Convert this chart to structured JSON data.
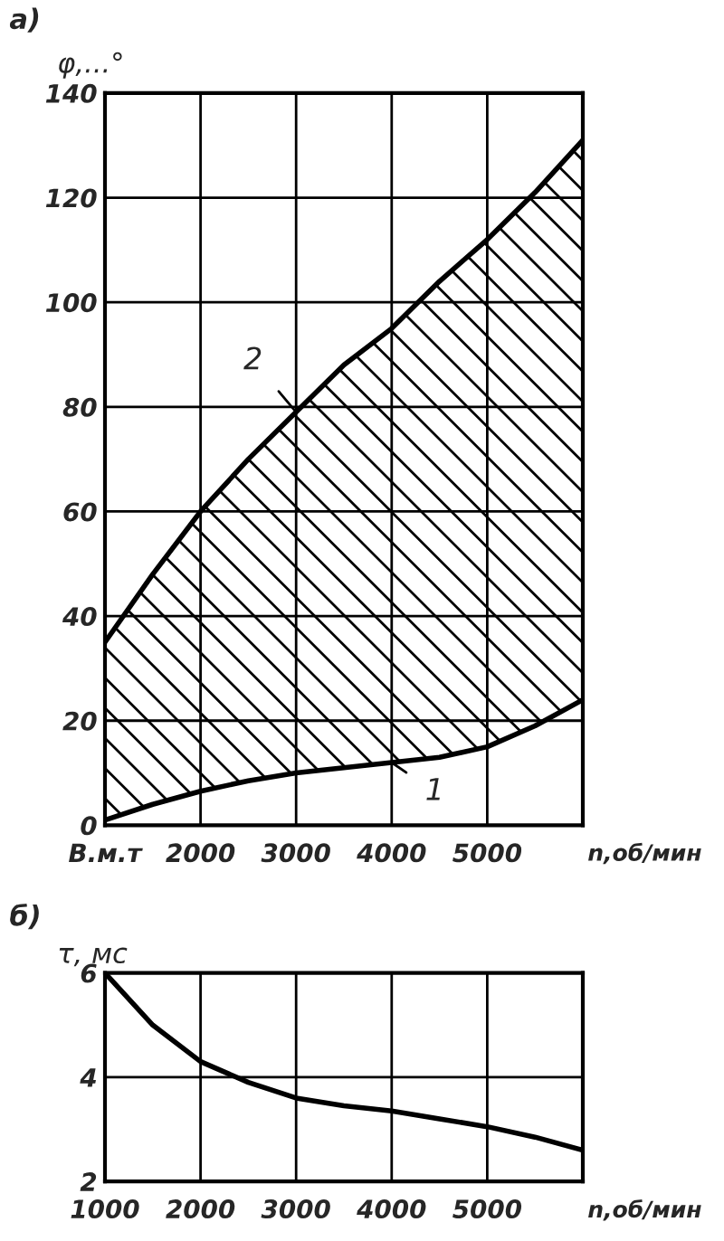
{
  "chart_data": [
    {
      "type": "line",
      "title": "а)",
      "ylabel": "φ,...°",
      "xlabel": "n,об/мин",
      "x": [
        1000,
        1500,
        2000,
        2500,
        3000,
        3500,
        4000,
        4500,
        5000,
        5500,
        6000
      ],
      "series": [
        {
          "name": "1",
          "color": "#000000",
          "values": [
            1,
            4,
            6.5,
            8.5,
            10,
            11,
            12,
            13,
            15,
            19,
            24
          ]
        },
        {
          "name": "2",
          "color": "#000000",
          "values": [
            35,
            48,
            60,
            70,
            79,
            88,
            95,
            104,
            112,
            121,
            131
          ],
          "lower": [
            1,
            4,
            6.5,
            8.5,
            10,
            11,
            12,
            13,
            15,
            19,
            24
          ],
          "upper": [
            35,
            48,
            60,
            70,
            79,
            88,
            95,
            104,
            112,
            121,
            131
          ]
        }
      ],
      "xlim": [
        1000,
        6000
      ],
      "xticks": [
        {
          "value": 1000,
          "label": "В.м.т"
        },
        2000,
        3000,
        4000,
        5000
      ],
      "ylim": [
        0,
        140
      ],
      "yticks": [
        0,
        20,
        40,
        60,
        80,
        100,
        120,
        140
      ],
      "grid": true
    },
    {
      "type": "line",
      "title": "б)",
      "ylabel": "τ, мс",
      "xlabel": "n,об/мин",
      "x": [
        1000,
        1500,
        2000,
        2500,
        3000,
        3500,
        4000,
        4500,
        5000,
        5500,
        6000
      ],
      "series": [
        {
          "color": "#000000",
          "values": [
            6,
            5,
            4.3,
            3.9,
            3.6,
            3.45,
            3.35,
            3.2,
            3.05,
            2.85,
            2.6
          ]
        }
      ],
      "xlim": [
        1000,
        6000
      ],
      "xticks": [
        1000,
        2000,
        3000,
        4000,
        5000
      ],
      "ylim": [
        2,
        6
      ],
      "yticks": [
        2,
        4,
        6
      ],
      "grid": true,
      "legend": false
    }
  ]
}
